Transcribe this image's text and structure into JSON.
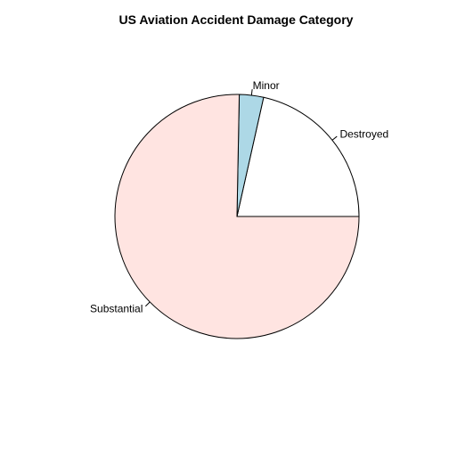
{
  "chart_data": {
    "type": "pie",
    "title": "US Aviation Accident Damage Category",
    "categories": [
      "Destroyed",
      "Minor",
      "Substantial"
    ],
    "values": [
      21.5,
      3.2,
      75.3
    ],
    "colors": [
      "#ffffff",
      "#add8e6",
      "#ffe4e1"
    ],
    "start_angle_deg": 0,
    "direction": "counterclockwise",
    "legend": "none"
  }
}
